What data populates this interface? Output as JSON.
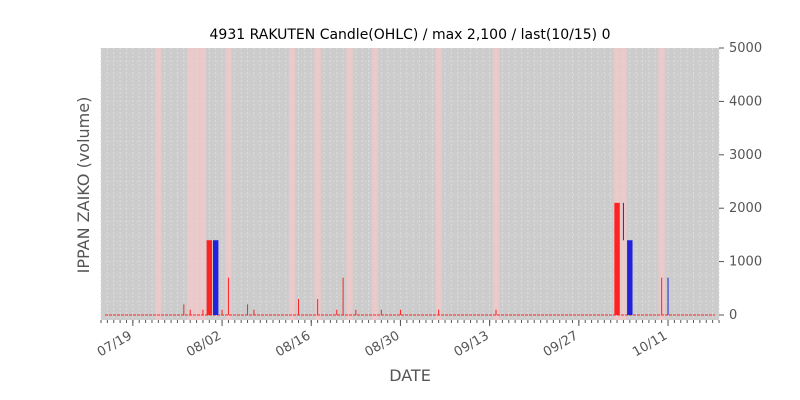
{
  "chart_data": {
    "type": "bar",
    "title": "4931 RAKUTEN Candle(OHLC) / max 2,100 / last(10/15) 0",
    "xlabel": "DATE",
    "ylabel": "IPPAN ZAIKO (volume)",
    "ylim": [
      0,
      5000
    ],
    "y_ticks": [
      0,
      1000,
      2000,
      3000,
      4000,
      5000
    ],
    "y_tick_labels": [
      "0",
      "1000",
      "2000",
      "3000",
      "4000",
      "5000"
    ],
    "y_axis_side": "right",
    "x_range": [
      "2024-07-14",
      "2024-10-19"
    ],
    "x_ticks": [
      "2024-07-19",
      "2024-08-02",
      "2024-08-16",
      "2024-08-30",
      "2024-09-13",
      "2024-09-27",
      "2024-10-11"
    ],
    "x_tick_labels": [
      "07/19",
      "08/02",
      "08/16",
      "08/30",
      "09/13",
      "09/27",
      "10/11"
    ],
    "grid": true,
    "legend": "none",
    "colors": {
      "plot_background": "#cccccc",
      "grid": "#dcdcdc",
      "up": "#ff2222",
      "down": "#2222dd",
      "highlight_bands": "#f3c8c8"
    },
    "highlight_dates": [
      "2024-07-23",
      "2024-07-28",
      "2024-07-29",
      "2024-07-30",
      "2024-08-03",
      "2024-08-13",
      "2024-08-17",
      "2024-08-22",
      "2024-08-26",
      "2024-09-05",
      "2024-09-14",
      "2024-10-03",
      "2024-10-04",
      "2024-10-10"
    ],
    "candles": [
      {
        "date": "2024-07-27",
        "open": 0,
        "high": 200,
        "low": 0,
        "close": 200
      },
      {
        "date": "2024-07-28",
        "open": 0,
        "high": 100,
        "low": 0,
        "close": 100
      },
      {
        "date": "2024-07-30",
        "open": 0,
        "high": 100,
        "low": 0,
        "close": 100
      },
      {
        "date": "2024-07-31",
        "open": 0,
        "high": 1400,
        "low": 0,
        "close": 1400
      },
      {
        "date": "2024-08-01",
        "open": 1400,
        "high": 1400,
        "low": 0,
        "close": 0
      },
      {
        "date": "2024-08-02",
        "open": 0,
        "high": 100,
        "low": 0,
        "close": 100
      },
      {
        "date": "2024-08-03",
        "open": 0,
        "high": 700,
        "low": 0,
        "close": 700
      },
      {
        "date": "2024-08-06",
        "open": 0,
        "high": 200,
        "low": 0,
        "close": 200
      },
      {
        "date": "2024-08-07",
        "open": 0,
        "high": 100,
        "low": 0,
        "close": 100
      },
      {
        "date": "2024-08-14",
        "open": 0,
        "high": 300,
        "low": 0,
        "close": 300
      },
      {
        "date": "2024-08-17",
        "open": 0,
        "high": 300,
        "low": 0,
        "close": 300
      },
      {
        "date": "2024-08-20",
        "open": 0,
        "high": 100,
        "low": 0,
        "close": 100
      },
      {
        "date": "2024-08-21",
        "open": 0,
        "high": 700,
        "low": 0,
        "close": 700
      },
      {
        "date": "2024-08-23",
        "open": 0,
        "high": 100,
        "low": 0,
        "close": 100
      },
      {
        "date": "2024-08-27",
        "open": 0,
        "high": 100,
        "low": 0,
        "close": 100
      },
      {
        "date": "2024-08-30",
        "open": 0,
        "high": 100,
        "low": 0,
        "close": 100
      },
      {
        "date": "2024-09-05",
        "open": 0,
        "high": 100,
        "low": 0,
        "close": 100
      },
      {
        "date": "2024-09-14",
        "open": 0,
        "high": 100,
        "low": 0,
        "close": 100
      },
      {
        "date": "2024-10-03",
        "open": 0,
        "high": 2100,
        "low": 0,
        "close": 2100
      },
      {
        "date": "2024-10-04",
        "open": 2100,
        "high": 2100,
        "low": 1400,
        "close": 1400
      },
      {
        "date": "2024-10-05",
        "open": 1400,
        "high": 1400,
        "low": 0,
        "close": 0
      },
      {
        "date": "2024-10-10",
        "open": 0,
        "high": 700,
        "low": 0,
        "close": 700
      },
      {
        "date": "2024-10-11",
        "open": 700,
        "high": 700,
        "low": 0,
        "close": 0
      }
    ]
  }
}
